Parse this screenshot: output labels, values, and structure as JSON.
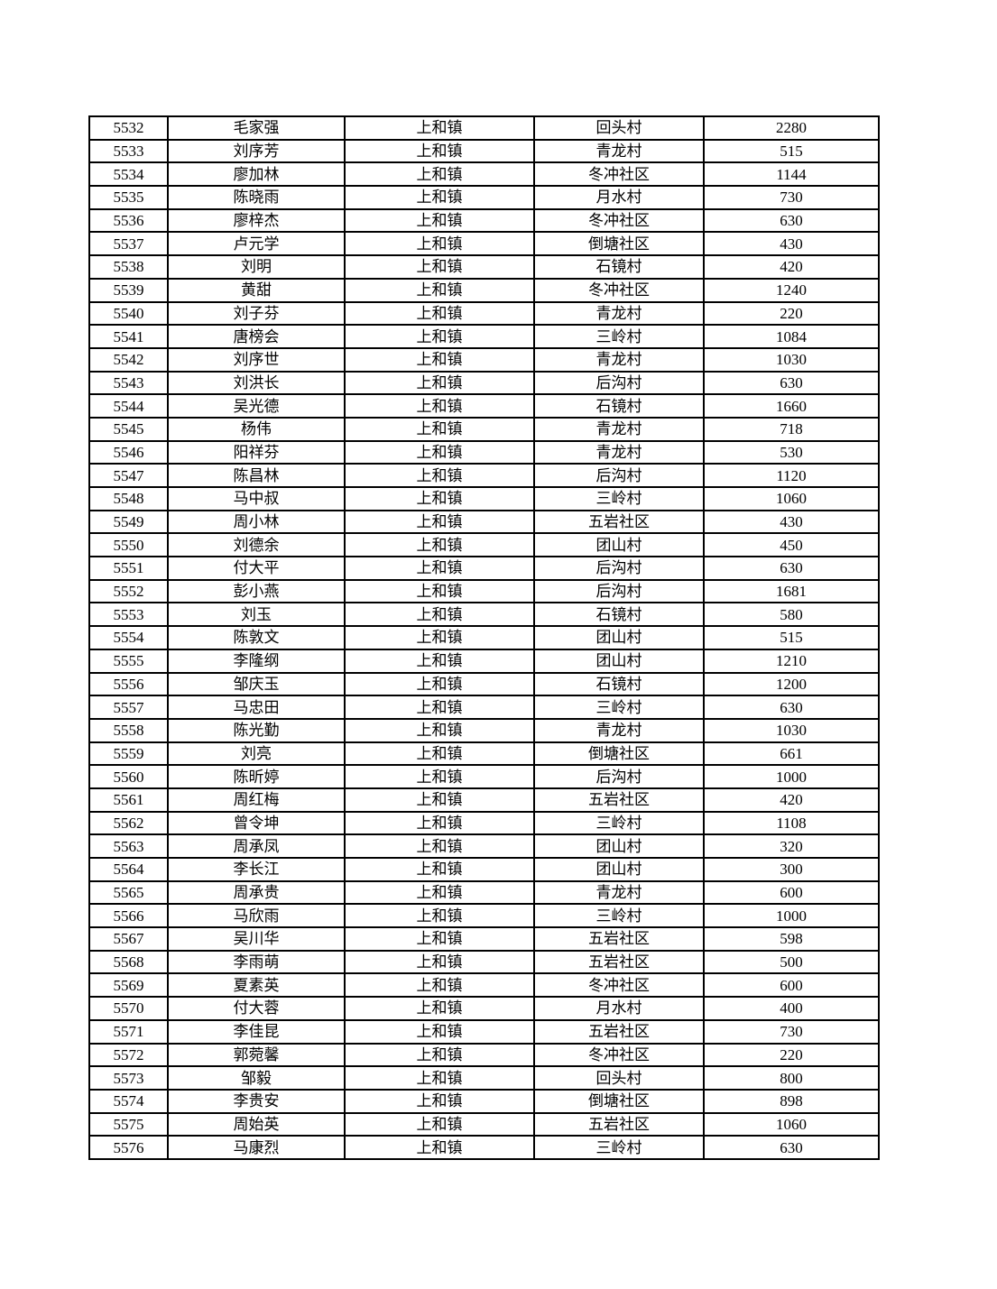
{
  "page": {
    "background_color": "#ffffff",
    "grid_color": "#000000",
    "text_color": "#000000"
  },
  "table": {
    "rows": [
      [
        "5532",
        "毛家强",
        "上和镇",
        "回头村",
        "2280"
      ],
      [
        "5533",
        "刘序芳",
        "上和镇",
        "青龙村",
        "515"
      ],
      [
        "5534",
        "廖加林",
        "上和镇",
        "冬冲社区",
        "1144"
      ],
      [
        "5535",
        "陈晓雨",
        "上和镇",
        "月水村",
        "730"
      ],
      [
        "5536",
        "廖梓杰",
        "上和镇",
        "冬冲社区",
        "630"
      ],
      [
        "5537",
        "卢元学",
        "上和镇",
        "倒塘社区",
        "430"
      ],
      [
        "5538",
        "刘明",
        "上和镇",
        "石镜村",
        "420"
      ],
      [
        "5539",
        "黄甜",
        "上和镇",
        "冬冲社区",
        "1240"
      ],
      [
        "5540",
        "刘子芬",
        "上和镇",
        "青龙村",
        "220"
      ],
      [
        "5541",
        "唐榜会",
        "上和镇",
        "三岭村",
        "1084"
      ],
      [
        "5542",
        "刘序世",
        "上和镇",
        "青龙村",
        "1030"
      ],
      [
        "5543",
        "刘洪长",
        "上和镇",
        "后沟村",
        "630"
      ],
      [
        "5544",
        "吴光德",
        "上和镇",
        "石镜村",
        "1660"
      ],
      [
        "5545",
        "杨伟",
        "上和镇",
        "青龙村",
        "718"
      ],
      [
        "5546",
        "阳祥芬",
        "上和镇",
        "青龙村",
        "530"
      ],
      [
        "5547",
        "陈昌林",
        "上和镇",
        "后沟村",
        "1120"
      ],
      [
        "5548",
        "马中叔",
        "上和镇",
        "三岭村",
        "1060"
      ],
      [
        "5549",
        "周小林",
        "上和镇",
        "五岩社区",
        "430"
      ],
      [
        "5550",
        "刘德余",
        "上和镇",
        "团山村",
        "450"
      ],
      [
        "5551",
        "付大平",
        "上和镇",
        "后沟村",
        "630"
      ],
      [
        "5552",
        "彭小燕",
        "上和镇",
        "后沟村",
        "1681"
      ],
      [
        "5553",
        "刘玉",
        "上和镇",
        "石镜村",
        "580"
      ],
      [
        "5554",
        "陈敦文",
        "上和镇",
        "团山村",
        "515"
      ],
      [
        "5555",
        "李隆纲",
        "上和镇",
        "团山村",
        "1210"
      ],
      [
        "5556",
        "邹庆玉",
        "上和镇",
        "石镜村",
        "1200"
      ],
      [
        "5557",
        "马忠田",
        "上和镇",
        "三岭村",
        "630"
      ],
      [
        "5558",
        "陈光勤",
        "上和镇",
        "青龙村",
        "1030"
      ],
      [
        "5559",
        "刘亮",
        "上和镇",
        "倒塘社区",
        "661"
      ],
      [
        "5560",
        "陈昕婷",
        "上和镇",
        "后沟村",
        "1000"
      ],
      [
        "5561",
        "周红梅",
        "上和镇",
        "五岩社区",
        "420"
      ],
      [
        "5562",
        "曾令坤",
        "上和镇",
        "三岭村",
        "1108"
      ],
      [
        "5563",
        "周承凤",
        "上和镇",
        "团山村",
        "320"
      ],
      [
        "5564",
        "李长江",
        "上和镇",
        "团山村",
        "300"
      ],
      [
        "5565",
        "周承贵",
        "上和镇",
        "青龙村",
        "600"
      ],
      [
        "5566",
        "马欣雨",
        "上和镇",
        "三岭村",
        "1000"
      ],
      [
        "5567",
        "吴川华",
        "上和镇",
        "五岩社区",
        "598"
      ],
      [
        "5568",
        "李雨萌",
        "上和镇",
        "五岩社区",
        "500"
      ],
      [
        "5569",
        "夏素英",
        "上和镇",
        "冬冲社区",
        "600"
      ],
      [
        "5570",
        "付大蓉",
        "上和镇",
        "月水村",
        "400"
      ],
      [
        "5571",
        "李佳昆",
        "上和镇",
        "五岩社区",
        "730"
      ],
      [
        "5572",
        "郭菀馨",
        "上和镇",
        "冬冲社区",
        "220"
      ],
      [
        "5573",
        "邹毅",
        "上和镇",
        "回头村",
        "800"
      ],
      [
        "5574",
        "李贵安",
        "上和镇",
        "倒塘社区",
        "898"
      ],
      [
        "5575",
        "周始英",
        "上和镇",
        "五岩社区",
        "1060"
      ],
      [
        "5576",
        "马康烈",
        "上和镇",
        "三岭村",
        "630"
      ]
    ]
  }
}
